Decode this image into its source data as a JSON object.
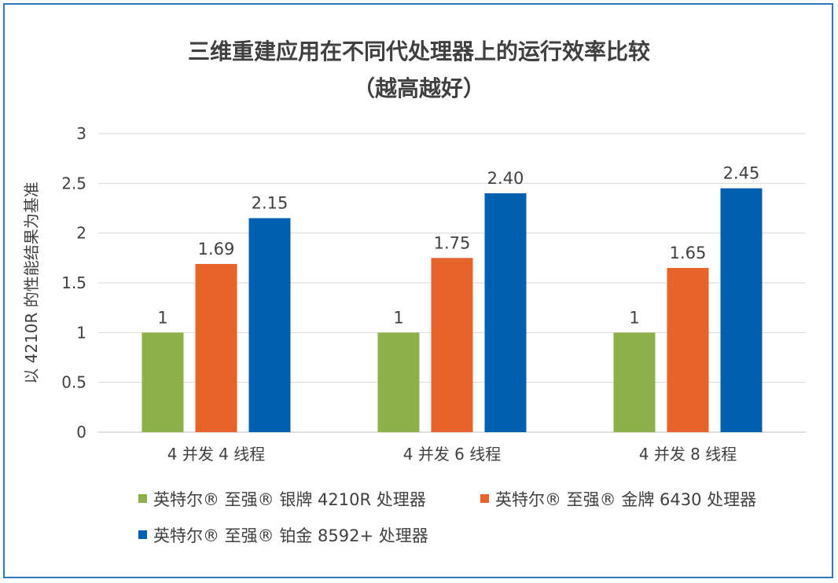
{
  "chart_data": {
    "type": "bar",
    "title": "三维重建应用在不同代处理器上的运行效率比较",
    "subtitle": "（越高越好）",
    "ylabel": "以 4210R 的性能结果为基准",
    "xlabel": "",
    "ylim": [
      0,
      3
    ],
    "yticks": [
      "0",
      "0.5",
      "1",
      "1.5",
      "2",
      "2.5",
      "3"
    ],
    "grid": true,
    "legend_placement": "bottom",
    "categories": [
      "4 并发 4 线程",
      "4 并发 6 线程",
      "4 并发 8 线程"
    ],
    "series": [
      {
        "name": "英特尔® 至强® 银牌 4210R 处理器",
        "color": "#8db04a",
        "values": [
          1,
          1,
          1
        ],
        "labels": [
          "1",
          "1",
          "1"
        ]
      },
      {
        "name": "英特尔® 至强® 金牌 6430 处理器",
        "color": "#e8632a",
        "values": [
          1.69,
          1.75,
          1.65
        ],
        "labels": [
          "1.69",
          "1.75",
          "1.65"
        ]
      },
      {
        "name": "英特尔® 至强® 铂金 8592+ 处理器",
        "color": "#0060b0",
        "values": [
          2.15,
          2.4,
          2.45
        ],
        "labels": [
          "2.15",
          "2.40",
          "2.45"
        ]
      }
    ]
  }
}
